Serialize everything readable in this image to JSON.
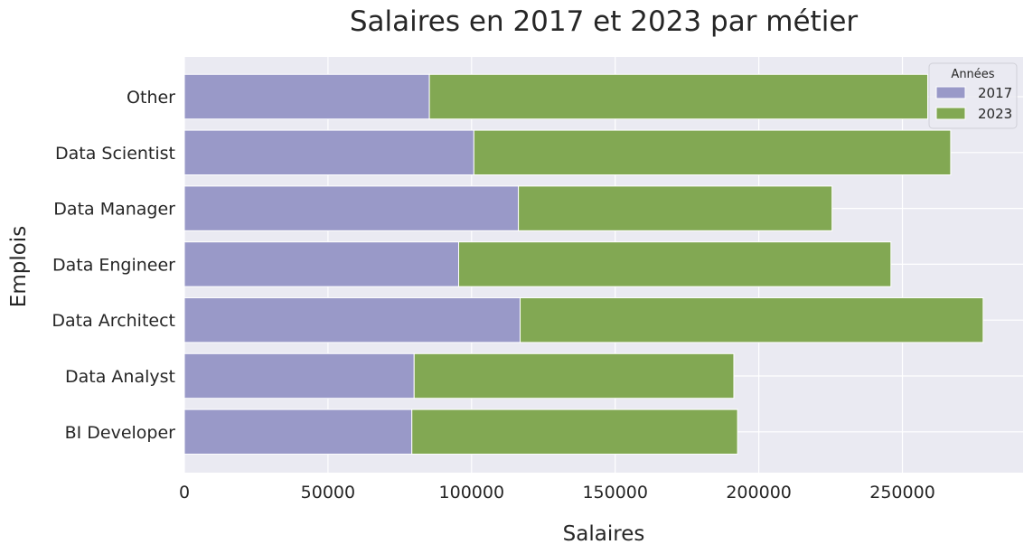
{
  "chart_data": {
    "type": "bar",
    "orientation": "horizontal",
    "stacked": true,
    "title": "Salaires en 2017 et 2023 par métier",
    "xlabel": "Salaires",
    "ylabel": "Emplois",
    "categories": [
      "Other",
      "Data Scientist",
      "Data Manager",
      "Data Engineer",
      "Data Architect",
      "Data Analyst",
      "BI Developer"
    ],
    "series": [
      {
        "name": "2017",
        "color": "#9999c8",
        "values": [
          85300,
          100800,
          116300,
          95500,
          116900,
          80000,
          79200
        ]
      },
      {
        "name": "2023",
        "color": "#82a853",
        "values": [
          173500,
          166000,
          109200,
          150500,
          161200,
          111300,
          113400
        ]
      }
    ],
    "xlim": [
      0,
      292000
    ],
    "xticks": [
      0,
      50000,
      100000,
      150000,
      200000,
      250000
    ],
    "grid": true,
    "legend": {
      "title": "Années",
      "position": "top-right"
    },
    "background": "#eaeaf2"
  }
}
